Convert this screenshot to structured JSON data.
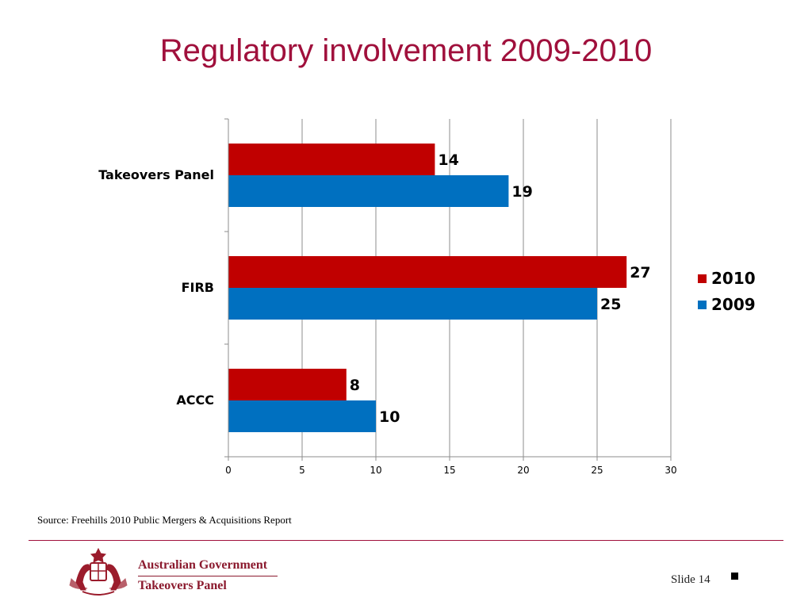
{
  "slide": {
    "title": "Regulatory involvement 2009-2010",
    "source": "Source: Freehills 2010 Public Mergers & Acquisitions Report",
    "slide_number": "Slide 14"
  },
  "logo": {
    "line1": "Australian Government",
    "line2": "Takeovers Panel",
    "crest": "coat-of-arms-icon"
  },
  "colors": {
    "title": "#A0103C",
    "series_2010": "#C00000",
    "series_2009": "#0070C0",
    "footer_rule": "#A0103C"
  },
  "chart_data": {
    "type": "bar",
    "orientation": "horizontal",
    "categories": [
      "Takeovers Panel",
      "FIRB",
      "ACCC"
    ],
    "series": [
      {
        "name": "2010",
        "values": [
          14,
          27,
          8
        ],
        "color": "#C00000"
      },
      {
        "name": "2009",
        "values": [
          19,
          25,
          10
        ],
        "color": "#0070C0"
      }
    ],
    "x_ticks": [
      0,
      5,
      10,
      15,
      20,
      25,
      30
    ],
    "xlim": [
      0,
      30
    ],
    "grid": "vertical",
    "legend": "right",
    "title": "",
    "xlabel": "",
    "ylabel": ""
  }
}
